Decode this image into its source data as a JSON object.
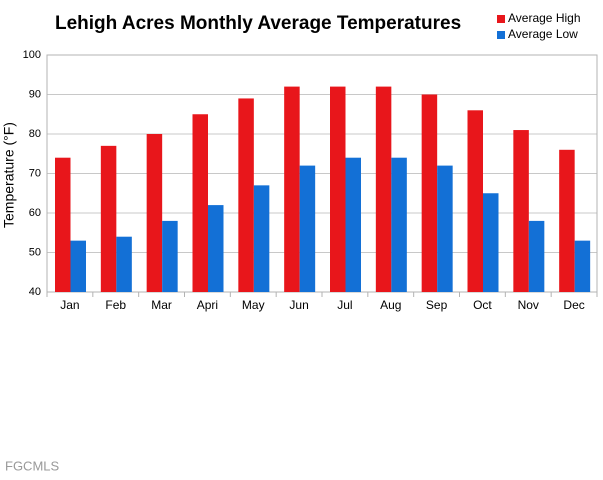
{
  "chart_data": {
    "type": "bar",
    "title": "Lehigh Acres Monthly Average Temperatures",
    "y_label": "Temperature (°F)",
    "categories": [
      "Jan",
      "Feb",
      "Mar",
      "Apri",
      "May",
      "Jun",
      "Jul",
      "Aug",
      "Sep",
      "Oct",
      "Nov",
      "Dec"
    ],
    "series": [
      {
        "name": "Average High",
        "color": "#e8161b",
        "values": [
          74,
          77,
          80,
          85,
          89,
          92,
          92,
          92,
          90,
          86,
          81,
          76
        ]
      },
      {
        "name": "Average Low",
        "color": "#1370d6",
        "values": [
          53,
          54,
          58,
          62,
          67,
          72,
          74,
          74,
          72,
          65,
          58,
          53
        ]
      }
    ],
    "ylim": [
      40,
      100
    ],
    "yticks": [
      40,
      50,
      60,
      70,
      80,
      90,
      100
    ],
    "grid": true,
    "legend": "top-right",
    "watermark": "FGCMLS"
  }
}
